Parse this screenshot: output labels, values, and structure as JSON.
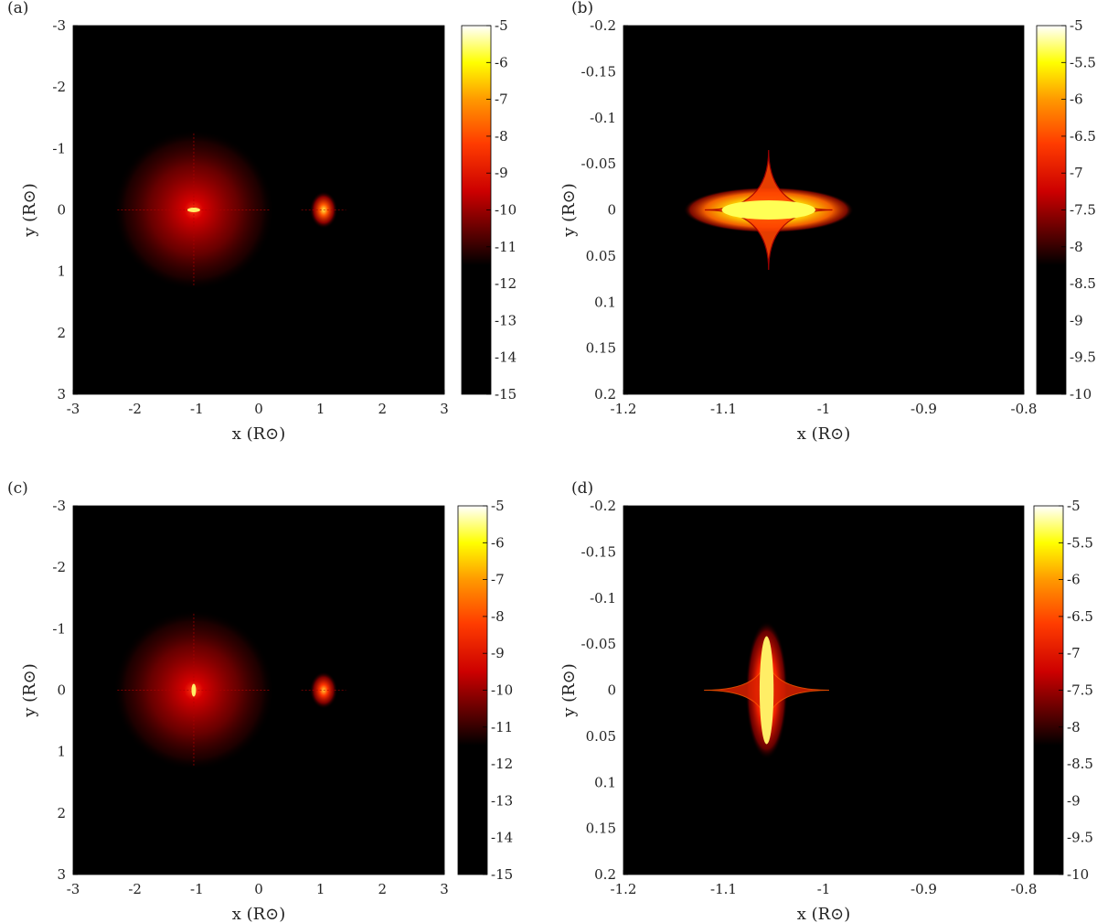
{
  "figure": {
    "panel_count": 4
  },
  "chart_data": [
    {
      "type": "heatmap",
      "panel_label": "(a)",
      "xlabel": "x (R⊙)",
      "ylabel": "y (R⊙)",
      "xlim": [
        -3,
        3
      ],
      "ylim": [
        3,
        -3
      ],
      "y_axis_direction": "reversed (negative at top)",
      "xticks": [
        "-3",
        "-2",
        "-1",
        "0",
        "1",
        "2",
        "3"
      ],
      "yticks": [
        "-3",
        "-2",
        "-1",
        "0",
        "1",
        "2",
        "3"
      ],
      "colorbar": {
        "min": -15,
        "max": -5,
        "colormap": "hot",
        "ticks": [
          "-5",
          "-6",
          "-7",
          "-8",
          "-9",
          "-10",
          "-11",
          "-12",
          "-13",
          "-14",
          "-15"
        ]
      },
      "features": [
        {
          "kind": "diffuse glow",
          "x": -1.05,
          "y": 0,
          "radius": 1.3,
          "peak": -5
        },
        {
          "kind": "compact source",
          "x": 1.05,
          "y": 0,
          "radius": 0.3,
          "peak": -8
        }
      ]
    },
    {
      "type": "heatmap",
      "panel_label": "(b)",
      "xlabel": "x (R⊙)",
      "ylabel": "y (R⊙)",
      "xlim": [
        -1.2,
        -0.8
      ],
      "ylim": [
        0.2,
        -0.2
      ],
      "y_axis_direction": "reversed (negative at top)",
      "xticks": [
        "-1.2",
        "-1.1",
        "-1",
        "-0.9",
        "-0.8"
      ],
      "yticks": [
        "-0.2",
        "-0.15",
        "-0.1",
        "-0.05",
        "0",
        "0.05",
        "0.1",
        "0.15",
        "0.2"
      ],
      "colorbar": {
        "min": -10,
        "max": -5,
        "colormap": "hot",
        "ticks": [
          "-5",
          "-5.5",
          "-6",
          "-6.5",
          "-7",
          "-7.5",
          "-8",
          "-8.5",
          "-9",
          "-9.5",
          "-10"
        ]
      },
      "features": [
        {
          "kind": "horizontal lens caustic",
          "x": -1.055,
          "y": 0,
          "half_width": 0.085,
          "half_height": 0.065,
          "peak": -5.5
        }
      ]
    },
    {
      "type": "heatmap",
      "panel_label": "(c)",
      "xlabel": "x (R⊙)",
      "ylabel": "y (R⊙)",
      "xlim": [
        -3,
        3
      ],
      "ylim": [
        3,
        -3
      ],
      "y_axis_direction": "reversed (negative at top)",
      "xticks": [
        "-3",
        "-2",
        "-1",
        "0",
        "1",
        "2",
        "3"
      ],
      "yticks": [
        "-3",
        "-2",
        "-1",
        "0",
        "1",
        "2",
        "3"
      ],
      "colorbar": {
        "min": -15,
        "max": -5,
        "colormap": "hot",
        "ticks": [
          "-5",
          "-6",
          "-7",
          "-8",
          "-9",
          "-10",
          "-11",
          "-12",
          "-13",
          "-14",
          "-15"
        ]
      },
      "features": [
        {
          "kind": "diffuse glow",
          "x": -1.05,
          "y": 0,
          "radius": 1.3,
          "peak": -6
        },
        {
          "kind": "compact source",
          "x": 1.05,
          "y": 0,
          "radius": 0.3,
          "peak": -9
        }
      ]
    },
    {
      "type": "heatmap",
      "panel_label": "(d)",
      "xlabel": "x (R⊙)",
      "ylabel": "y (R⊙)",
      "xlim": [
        -1.2,
        -0.8
      ],
      "ylim": [
        0.2,
        -0.2
      ],
      "y_axis_direction": "reversed (negative at top)",
      "xticks": [
        "-1.2",
        "-1.1",
        "-1",
        "-0.9",
        "-0.8"
      ],
      "yticks": [
        "-0.2",
        "-0.15",
        "-0.1",
        "-0.05",
        "0",
        "0.05",
        "0.1",
        "0.15",
        "0.2"
      ],
      "colorbar": {
        "min": -10,
        "max": -5,
        "colormap": "hot",
        "ticks": [
          "-5",
          "-5.5",
          "-6",
          "-6.5",
          "-7",
          "-7.5",
          "-8",
          "-8.5",
          "-9",
          "-9.5",
          "-10"
        ]
      },
      "features": [
        {
          "kind": "vertical lens caustic",
          "x": -1.057,
          "y": 0,
          "half_width": 0.05,
          "half_height": 0.075,
          "peak": -5.5
        }
      ]
    }
  ]
}
